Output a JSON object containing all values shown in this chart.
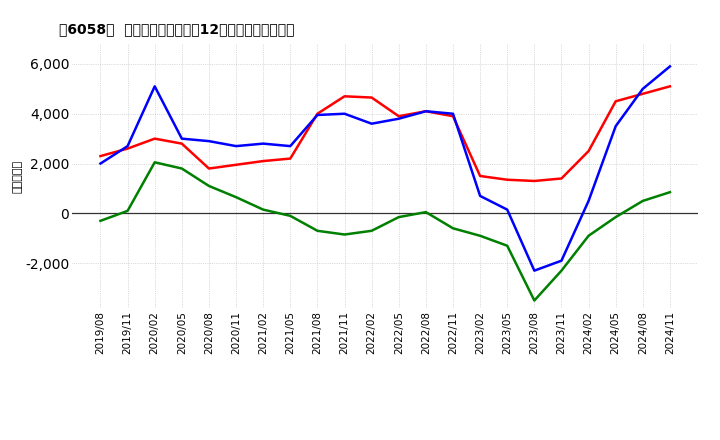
{
  "title": "［6058］  キャッシュフローの12か月移動合計の推移",
  "ylabel": "（百万円）",
  "ylim": [
    -3800,
    6800
  ],
  "yticks": [
    -2000,
    0,
    2000,
    4000,
    6000
  ],
  "background_color": "#ffffff",
  "grid_color": "#bbbbbb",
  "x_labels": [
    "2019/08",
    "2019/11",
    "2020/02",
    "2020/05",
    "2020/08",
    "2020/11",
    "2021/02",
    "2021/05",
    "2021/08",
    "2021/11",
    "2022/02",
    "2022/05",
    "2022/08",
    "2022/11",
    "2023/02",
    "2023/05",
    "2023/08",
    "2023/11",
    "2024/02",
    "2024/05",
    "2024/08",
    "2024/11"
  ],
  "operating_cf": [
    2300,
    2600,
    3000,
    2800,
    1800,
    1950,
    2100,
    2200,
    4000,
    4700,
    4650,
    3900,
    4100,
    3900,
    1500,
    1350,
    1300,
    1400,
    2500,
    4500,
    4800,
    5100
  ],
  "investing_cf": [
    -300,
    100,
    2050,
    1800,
    1100,
    650,
    150,
    -100,
    -700,
    -850,
    -700,
    -150,
    50,
    -600,
    -900,
    -1300,
    -3500,
    -2300,
    -900,
    -150,
    500,
    850
  ],
  "free_cf": [
    2000,
    2700,
    5100,
    3000,
    2900,
    2700,
    2800,
    2700,
    3950,
    4000,
    3600,
    3800,
    4100,
    4000,
    700,
    150,
    -2300,
    -1900,
    500,
    3500,
    5000,
    5900
  ],
  "operating_color": "#ff0000",
  "investing_color": "#008000",
  "free_color": "#0000ff",
  "line_width": 1.8
}
